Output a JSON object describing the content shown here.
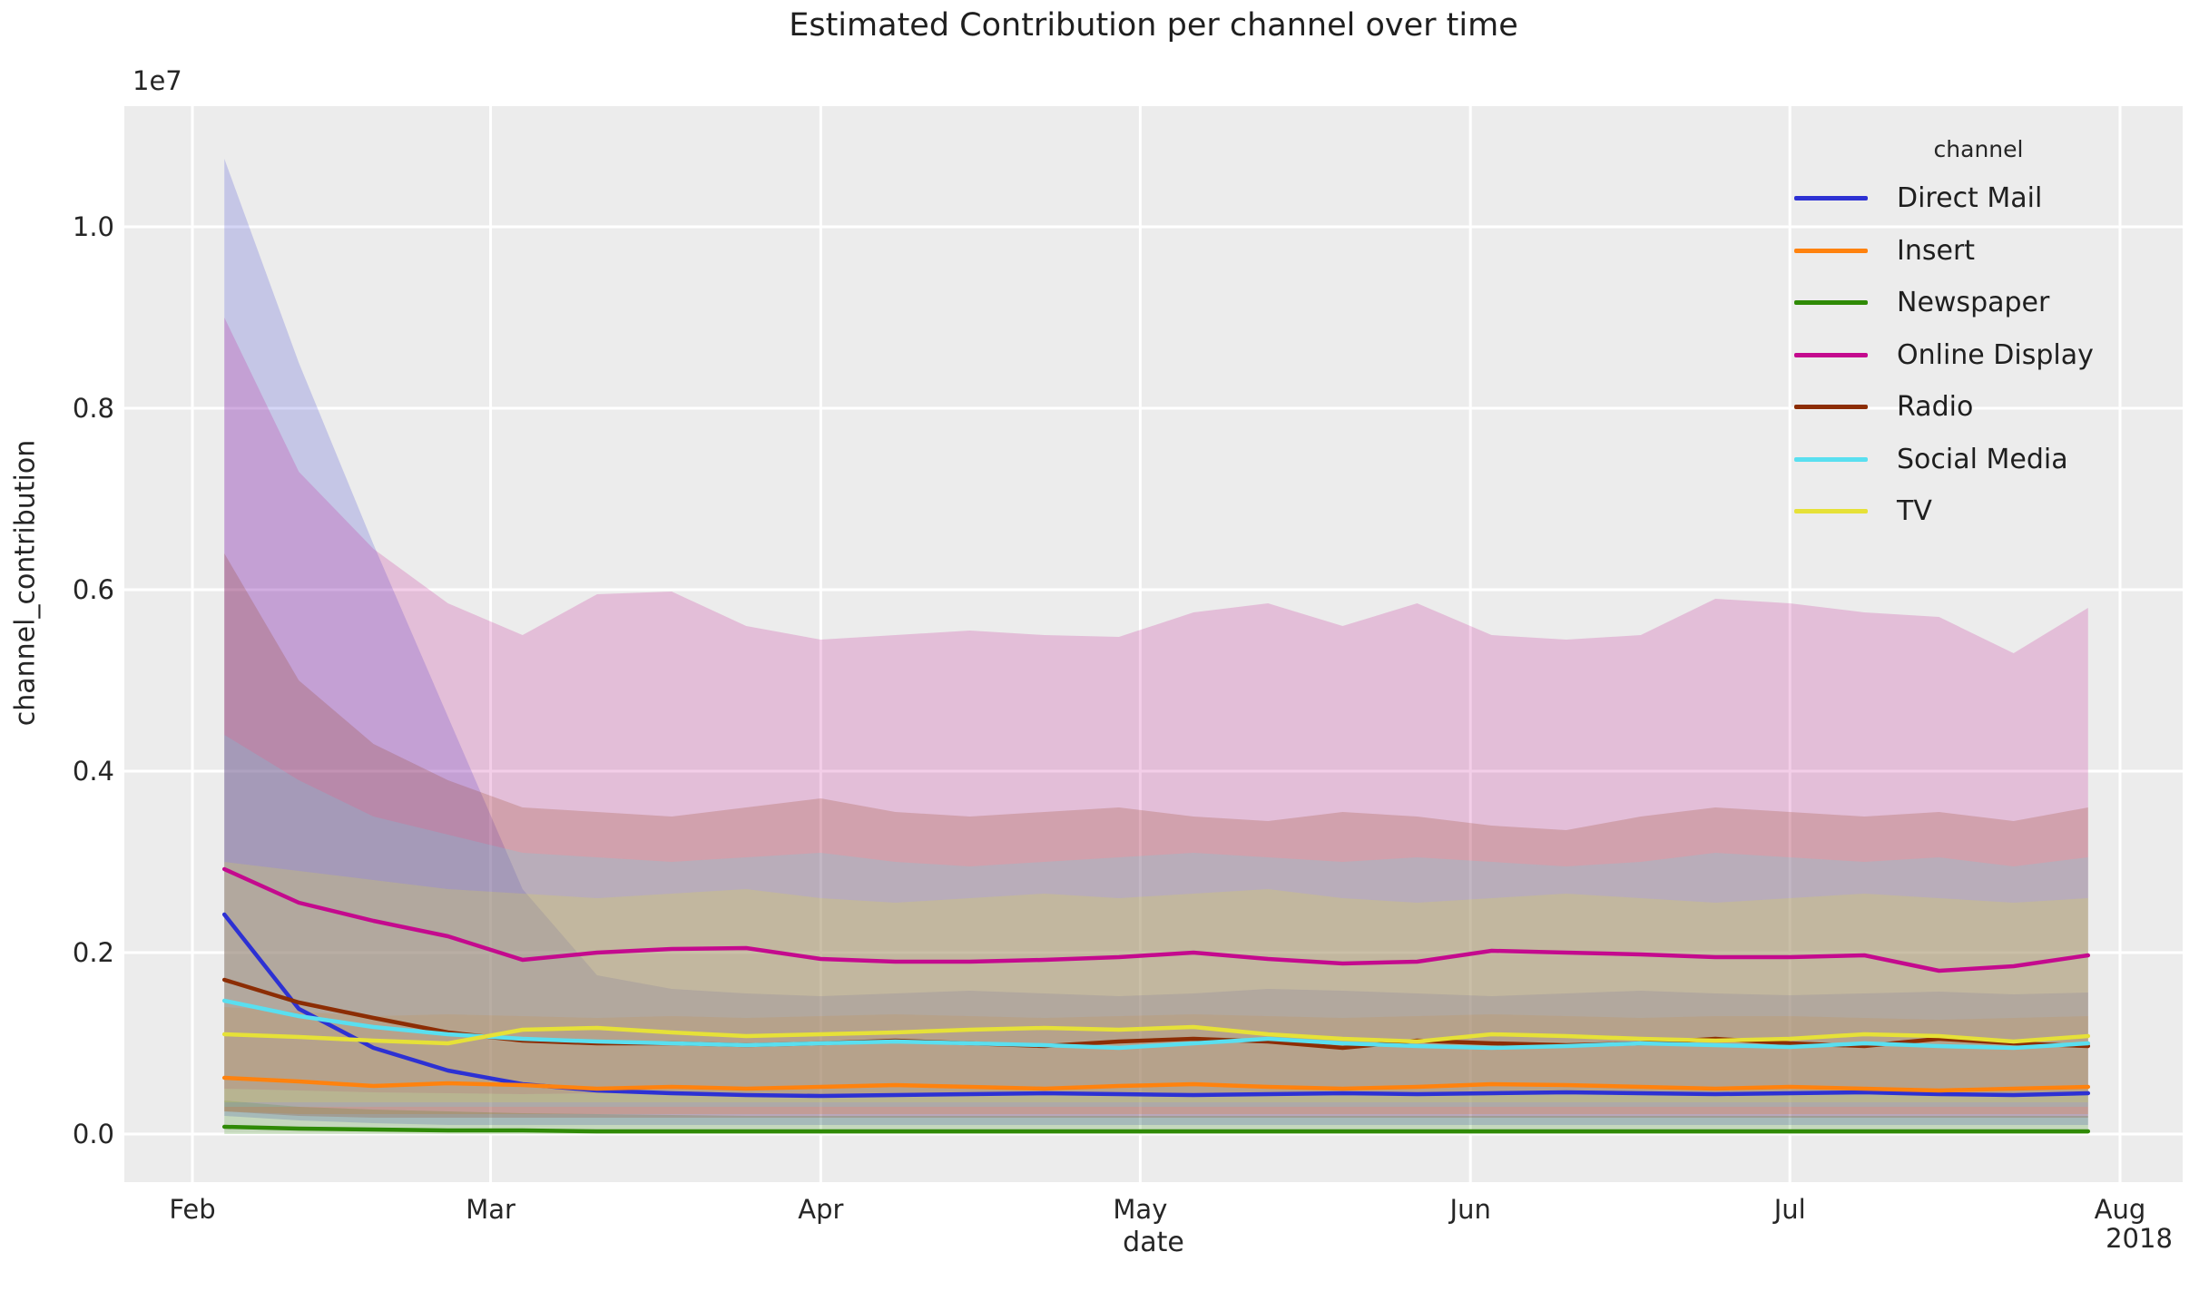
{
  "title": "Estimated Contribution per channel over time",
  "axes": {
    "x_label": "date",
    "y_label": "channel_contribution",
    "offset_text": "1e7",
    "year_label": "2018",
    "x_ticks": [
      {
        "label": "Feb",
        "day": 0
      },
      {
        "label": "Mar",
        "day": 28
      },
      {
        "label": "Apr",
        "day": 59
      },
      {
        "label": "May",
        "day": 89
      },
      {
        "label": "Jun",
        "day": 120
      },
      {
        "label": "Jul",
        "day": 150
      },
      {
        "label": "Aug",
        "day": 181
      }
    ],
    "y_ticks": [
      {
        "label": "0.0",
        "value": 0
      },
      {
        "label": "0.2",
        "value": 2
      },
      {
        "label": "0.4",
        "value": 4
      },
      {
        "label": "0.6",
        "value": 6
      },
      {
        "label": "0.8",
        "value": 8
      },
      {
        "label": "1.0",
        "value": 10
      }
    ]
  },
  "legend": {
    "title": "channel",
    "entries": [
      {
        "label": "Direct Mail",
        "color": "#2d31d3"
      },
      {
        "label": "Insert",
        "color": "#ff820e"
      },
      {
        "label": "Newspaper",
        "color": "#2f8a06"
      },
      {
        "label": "Online Display",
        "color": "#c40a8e"
      },
      {
        "label": "Radio",
        "color": "#8c2d04"
      },
      {
        "label": "Social Media",
        "color": "#59dff0"
      },
      {
        "label": "TV",
        "color": "#e6e138"
      }
    ]
  },
  "chart_data": {
    "type": "line",
    "title": "Estimated Contribution per channel over time",
    "xlabel": "date",
    "ylabel": "channel_contribution",
    "value_unit": "1e6 (axis shown as 1e7 offset)",
    "ylim": [
      -530000,
      11330000
    ],
    "x_range_days": [
      0,
      181
    ],
    "grid": true,
    "legend_position": "upper right",
    "band_opacity": 0.2,
    "x_dates": [
      "2018-02-04",
      "2018-02-11",
      "2018-02-18",
      "2018-02-25",
      "2018-03-04",
      "2018-03-11",
      "2018-03-18",
      "2018-03-25",
      "2018-04-01",
      "2018-04-08",
      "2018-04-15",
      "2018-04-22",
      "2018-04-29",
      "2018-05-06",
      "2018-05-13",
      "2018-05-20",
      "2018-05-27",
      "2018-06-03",
      "2018-06-10",
      "2018-06-17",
      "2018-06-24",
      "2018-07-01",
      "2018-07-08",
      "2018-07-15",
      "2018-07-22",
      "2018-07-29"
    ],
    "x_days": [
      3,
      10,
      17,
      24,
      31,
      38,
      45,
      52,
      59,
      66,
      73,
      80,
      87,
      94,
      101,
      108,
      115,
      122,
      129,
      136,
      143,
      150,
      157,
      164,
      171,
      178
    ],
    "series": [
      {
        "name": "Direct Mail",
        "color": "#2d31d3",
        "values": [
          2.42,
          1.38,
          0.95,
          0.7,
          0.55,
          0.48,
          0.45,
          0.43,
          0.42,
          0.43,
          0.44,
          0.45,
          0.44,
          0.43,
          0.44,
          0.45,
          0.44,
          0.45,
          0.46,
          0.45,
          0.44,
          0.45,
          0.46,
          0.44,
          0.43,
          0.45
        ],
        "upper": [
          10.75,
          8.5,
          6.5,
          4.6,
          2.7,
          1.75,
          1.6,
          1.55,
          1.52,
          1.55,
          1.58,
          1.55,
          1.52,
          1.55,
          1.6,
          1.58,
          1.55,
          1.52,
          1.55,
          1.58,
          1.55,
          1.53,
          1.55,
          1.57,
          1.54,
          1.56
        ],
        "lower": [
          0.2,
          0.15,
          0.12,
          0.1,
          0.1,
          0.1,
          0.1,
          0.1,
          0.1,
          0.1,
          0.1,
          0.1,
          0.1,
          0.1,
          0.1,
          0.1,
          0.1,
          0.1,
          0.1,
          0.1,
          0.1,
          0.1,
          0.1,
          0.1,
          0.1,
          0.1
        ]
      },
      {
        "name": "Insert",
        "color": "#ff820e",
        "values": [
          0.62,
          0.58,
          0.53,
          0.56,
          0.54,
          0.5,
          0.52,
          0.5,
          0.52,
          0.54,
          0.52,
          0.5,
          0.53,
          0.55,
          0.52,
          0.5,
          0.52,
          0.55,
          0.54,
          0.52,
          0.5,
          0.52,
          0.5,
          0.48,
          0.5,
          0.52
        ],
        "upper": [
          1.4,
          1.35,
          1.3,
          1.32,
          1.3,
          1.28,
          1.3,
          1.28,
          1.3,
          1.32,
          1.3,
          1.28,
          1.3,
          1.32,
          1.3,
          1.28,
          1.3,
          1.32,
          1.3,
          1.28,
          1.3,
          1.3,
          1.28,
          1.26,
          1.28,
          1.3
        ],
        "lower": [
          0.25,
          0.22,
          0.22,
          0.22,
          0.22,
          0.22,
          0.22,
          0.22,
          0.22,
          0.22,
          0.22,
          0.22,
          0.22,
          0.22,
          0.22,
          0.22,
          0.22,
          0.22,
          0.22,
          0.22,
          0.22,
          0.22,
          0.22,
          0.22,
          0.22,
          0.22
        ]
      },
      {
        "name": "Newspaper",
        "color": "#2f8a06",
        "values": [
          0.08,
          0.06,
          0.05,
          0.04,
          0.04,
          0.03,
          0.03,
          0.03,
          0.03,
          0.03,
          0.03,
          0.03,
          0.03,
          0.03,
          0.03,
          0.03,
          0.03,
          0.03,
          0.03,
          0.03,
          0.03,
          0.03,
          0.03,
          0.03,
          0.03,
          0.03
        ],
        "upper": [
          0.37,
          0.3,
          0.27,
          0.25,
          0.23,
          0.22,
          0.21,
          0.2,
          0.2,
          0.2,
          0.2,
          0.2,
          0.2,
          0.2,
          0.2,
          0.2,
          0.2,
          0.2,
          0.2,
          0.2,
          0.2,
          0.2,
          0.2,
          0.2,
          0.2,
          0.2
        ],
        "lower": [
          0.0,
          0.0,
          0.0,
          0.0,
          0.0,
          0.0,
          0.0,
          0.0,
          0.0,
          0.0,
          0.0,
          0.0,
          0.0,
          0.0,
          0.0,
          0.0,
          0.0,
          0.0,
          0.0,
          0.0,
          0.0,
          0.0,
          0.0,
          0.0,
          0.0,
          0.0
        ]
      },
      {
        "name": "Online Display",
        "color": "#c40a8e",
        "values": [
          2.92,
          2.55,
          2.35,
          2.18,
          1.92,
          2.0,
          2.04,
          2.05,
          1.93,
          1.9,
          1.9,
          1.92,
          1.95,
          2.0,
          1.93,
          1.88,
          1.9,
          2.02,
          2.0,
          1.98,
          1.95,
          1.95,
          1.97,
          1.8,
          1.85,
          1.97
        ],
        "upper": [
          9.0,
          7.3,
          6.45,
          5.85,
          5.5,
          5.95,
          5.98,
          5.6,
          5.45,
          5.5,
          5.55,
          5.5,
          5.48,
          5.75,
          5.85,
          5.6,
          5.85,
          5.5,
          5.45,
          5.5,
          5.9,
          5.85,
          5.75,
          5.7,
          5.3,
          5.8
        ],
        "lower": [
          0.5,
          0.48,
          0.46,
          0.45,
          0.44,
          0.45,
          0.45,
          0.44,
          0.43,
          0.44,
          0.45,
          0.44,
          0.43,
          0.44,
          0.45,
          0.44,
          0.43,
          0.44,
          0.45,
          0.44,
          0.43,
          0.44,
          0.45,
          0.44,
          0.43,
          0.45
        ]
      },
      {
        "name": "Radio",
        "color": "#8c2d04",
        "values": [
          1.7,
          1.45,
          1.28,
          1.12,
          1.03,
          1.0,
          1.0,
          0.98,
          1.0,
          1.03,
          1.0,
          0.97,
          1.02,
          1.05,
          1.02,
          0.95,
          1.03,
          1.0,
          0.98,
          1.0,
          1.05,
          1.0,
          0.97,
          1.05,
          1.0,
          0.97
        ],
        "upper": [
          6.4,
          5.0,
          4.3,
          3.9,
          3.6,
          3.55,
          3.5,
          3.6,
          3.7,
          3.55,
          3.5,
          3.55,
          3.6,
          3.5,
          3.45,
          3.55,
          3.5,
          3.4,
          3.35,
          3.5,
          3.6,
          3.55,
          3.5,
          3.55,
          3.45,
          3.6
        ],
        "lower": [
          0.25,
          0.2,
          0.18,
          0.18,
          0.18,
          0.18,
          0.18,
          0.18,
          0.18,
          0.18,
          0.18,
          0.18,
          0.18,
          0.18,
          0.18,
          0.18,
          0.18,
          0.18,
          0.18,
          0.18,
          0.18,
          0.18,
          0.18,
          0.18,
          0.18,
          0.18
        ]
      },
      {
        "name": "Social Media",
        "color": "#59dff0",
        "values": [
          1.47,
          1.3,
          1.18,
          1.1,
          1.05,
          1.02,
          1.0,
          0.98,
          1.0,
          1.02,
          1.0,
          0.98,
          0.95,
          1.0,
          1.05,
          1.0,
          0.97,
          0.95,
          0.97,
          1.0,
          0.98,
          0.96,
          1.0,
          0.97,
          0.95,
          1.0
        ],
        "upper": [
          4.4,
          3.9,
          3.5,
          3.3,
          3.1,
          3.05,
          3.0,
          3.05,
          3.1,
          3.0,
          2.95,
          3.0,
          3.05,
          3.1,
          3.05,
          3.0,
          3.05,
          3.0,
          2.95,
          3.0,
          3.1,
          3.05,
          3.0,
          3.05,
          2.95,
          3.05
        ],
        "lower": [
          0.3,
          0.3,
          0.3,
          0.3,
          0.3,
          0.3,
          0.3,
          0.3,
          0.3,
          0.3,
          0.3,
          0.3,
          0.3,
          0.3,
          0.3,
          0.3,
          0.3,
          0.3,
          0.3,
          0.3,
          0.3,
          0.3,
          0.3,
          0.3,
          0.3,
          0.3
        ]
      },
      {
        "name": "TV",
        "color": "#e6e138",
        "values": [
          1.1,
          1.07,
          1.03,
          1.0,
          1.15,
          1.17,
          1.12,
          1.08,
          1.1,
          1.12,
          1.15,
          1.17,
          1.15,
          1.18,
          1.1,
          1.05,
          1.02,
          1.1,
          1.08,
          1.05,
          1.03,
          1.05,
          1.1,
          1.08,
          1.02,
          1.08
        ],
        "upper": [
          3.0,
          2.9,
          2.8,
          2.7,
          2.65,
          2.6,
          2.65,
          2.7,
          2.6,
          2.55,
          2.6,
          2.65,
          2.6,
          2.65,
          2.7,
          2.6,
          2.55,
          2.6,
          2.65,
          2.6,
          2.55,
          2.6,
          2.65,
          2.6,
          2.55,
          2.6
        ],
        "lower": [
          0.35,
          0.35,
          0.35,
          0.35,
          0.35,
          0.35,
          0.35,
          0.35,
          0.35,
          0.35,
          0.35,
          0.35,
          0.35,
          0.35,
          0.35,
          0.35,
          0.35,
          0.35,
          0.35,
          0.35,
          0.35,
          0.35,
          0.35,
          0.35,
          0.35,
          0.35
        ]
      }
    ]
  }
}
